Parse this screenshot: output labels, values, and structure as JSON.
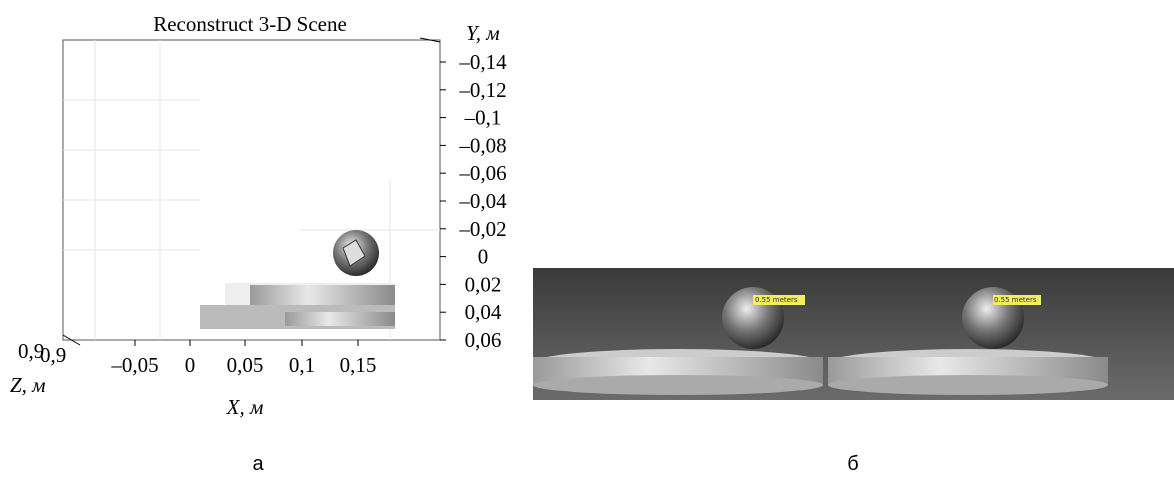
{
  "panel_a": {
    "title": "Reconstruct 3-D Scene",
    "y_axis": {
      "label": "Y, м",
      "ticks": [
        "–0,14",
        "–0,12",
        "–0,1",
        "–0,08",
        "–0,06",
        "–0,04",
        "–0,02",
        "0",
        "0,02",
        "0,04",
        "0,06"
      ]
    },
    "x_axis": {
      "label": "X, м",
      "ticks": [
        "–0,05",
        "0",
        "0,05",
        "0,1",
        "0,15"
      ]
    },
    "z_axis": {
      "label": "Z, м",
      "ticks": [
        "0,9",
        "0,9"
      ]
    },
    "caption": "а"
  },
  "panel_b": {
    "labels": [
      "0.55 meters",
      "0.55 meters"
    ],
    "caption": "б"
  }
}
